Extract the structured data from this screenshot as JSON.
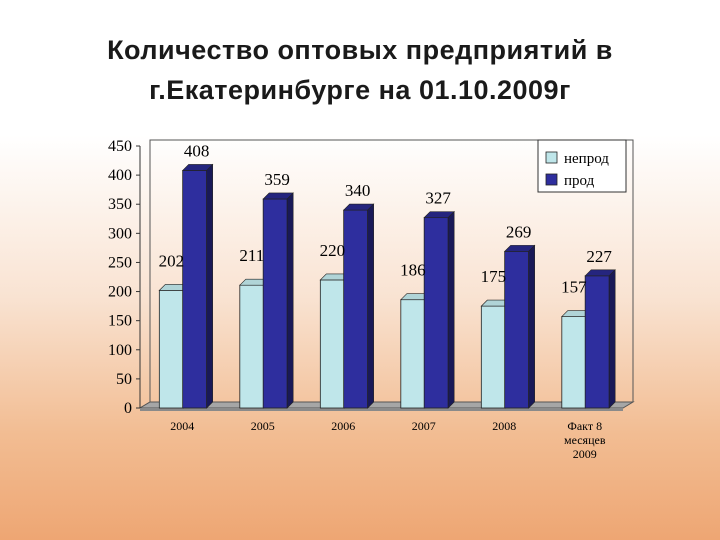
{
  "slide": {
    "title_line1": "Количество оптовых предприятий в",
    "title_line2": "г.Екатеринбурге  на 01.10.2009г"
  },
  "chart_data": {
    "type": "bar",
    "title": "Количество оптовых предприятий в г.Екатеринбурге  на 01.10.2009г",
    "categories": [
      [
        "2004"
      ],
      [
        "2005"
      ],
      [
        "2006"
      ],
      [
        "2007"
      ],
      [
        "2008"
      ],
      [
        "Факт 8",
        "месяцев",
        "2009"
      ]
    ],
    "series": [
      {
        "name": "непрод",
        "values": [
          202,
          211,
          220,
          186,
          175,
          157
        ],
        "color": "#bfe6ea"
      },
      {
        "name": "прод",
        "values": [
          408,
          359,
          340,
          327,
          269,
          227
        ],
        "color": "#2e2e9e"
      }
    ],
    "ylim": [
      0,
      450
    ],
    "yticks": [
      "0",
      "50",
      "100",
      "150",
      "200",
      "250",
      "300",
      "350",
      "400",
      "450"
    ],
    "legend_position": "top-right",
    "grid": false
  }
}
